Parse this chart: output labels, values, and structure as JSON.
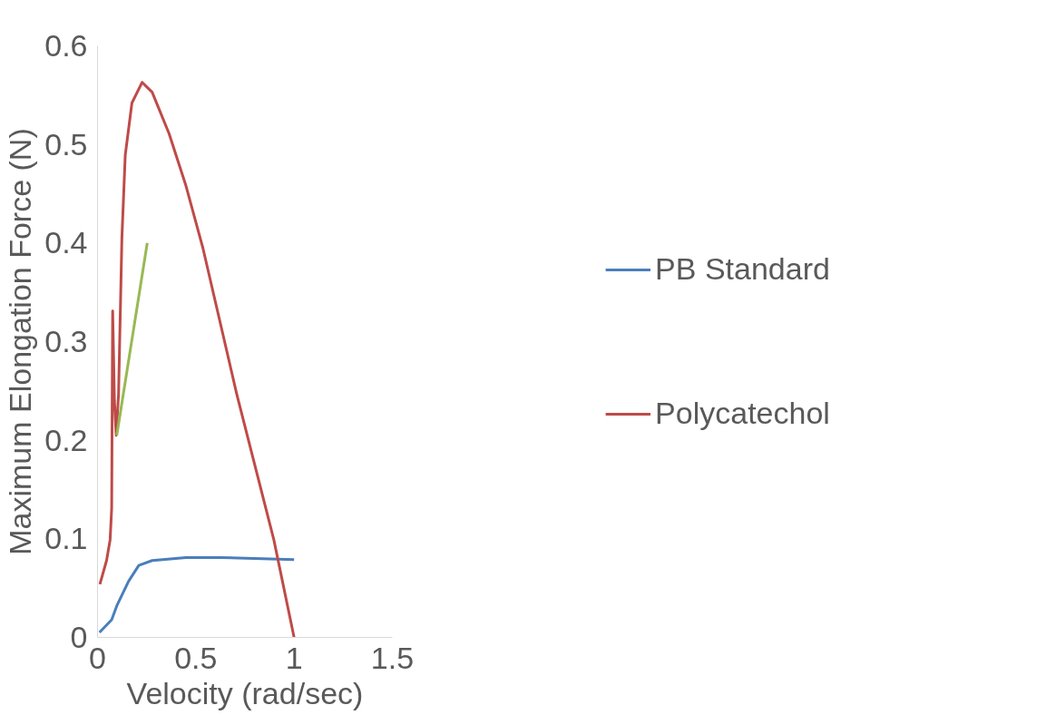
{
  "chart_data": {
    "type": "line",
    "xlabel": "Velocity (rad/sec)",
    "ylabel": "Maximum Elongation Force (N)",
    "xlim": [
      0,
      1.5
    ],
    "xticks": [
      0,
      0.5,
      1,
      1.5
    ],
    "ylim": [
      0,
      0.6
    ],
    "yticks": [
      0,
      0.1,
      0.2,
      0.3,
      0.4,
      0.5,
      0.6
    ],
    "grid": false,
    "legend": "right",
    "marker": "none",
    "line_style": "solid",
    "series": [
      {
        "name": "PB Standard",
        "color": "#4a7ebb",
        "x": [
          0.01,
          0.072,
          0.098,
          0.158,
          0.21,
          0.278,
          0.45,
          0.622,
          1
        ],
        "values": [
          0.005,
          0.018,
          0.032,
          0.057,
          0.073,
          0.078,
          0.081,
          0.081,
          0.079
        ]
      },
      {
        "name": "Polycatechol",
        "color": "#be4b48",
        "x": [
          0.012,
          0.046,
          0.064,
          0.072,
          0.077,
          0.086,
          0.095,
          0.107,
          0.124,
          0.141,
          0.175,
          0.227,
          0.278,
          0.364,
          0.45,
          0.536,
          0.708,
          0.897,
          1
        ],
        "values": [
          0.054,
          0.078,
          0.099,
          0.131,
          0.331,
          0.24,
          0.205,
          0.247,
          0.405,
          0.489,
          0.542,
          0.563,
          0.553,
          0.511,
          0.458,
          0.395,
          0.247,
          0.099,
          0
        ]
      },
      {
        "color": "#98b954",
        "x": [
          0.098,
          0.253
        ],
        "values": [
          0.205,
          0.4
        ]
      }
    ]
  }
}
